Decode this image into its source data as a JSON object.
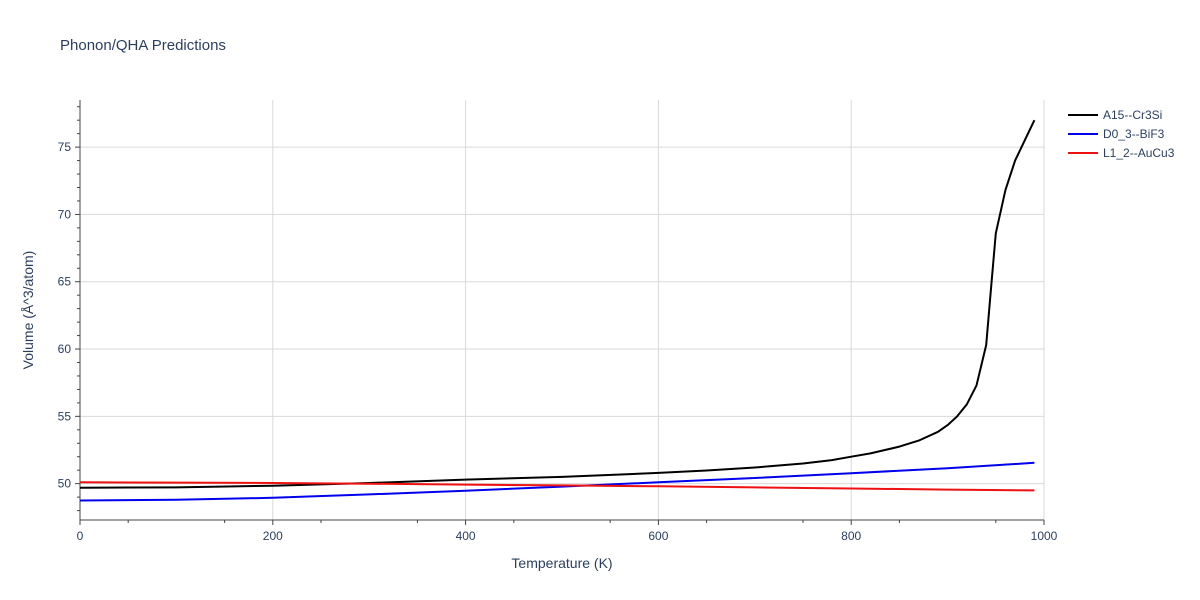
{
  "chart_data": {
    "type": "line",
    "title": "Phonon/QHA Predictions",
    "xlabel": "Temperature (K)",
    "ylabel": "Volume (Å^3/atom)",
    "xlim": [
      0,
      1000
    ],
    "ylim": [
      47.3,
      78.5
    ],
    "xticks": [
      0,
      200,
      400,
      600,
      800,
      1000
    ],
    "xtick_labels": [
      "0",
      "200",
      "400",
      "600",
      "800",
      "1000"
    ],
    "yticks": [
      50,
      55,
      60,
      65,
      70,
      75
    ],
    "ytick_labels": [
      "50",
      "55",
      "60",
      "65",
      "70",
      "75"
    ],
    "grid": true,
    "legend_position": "top-right-outside",
    "series": [
      {
        "name": "A15--Cr3Si",
        "color": "#000000",
        "x": [
          0,
          100,
          200,
          300,
          400,
          500,
          600,
          650,
          700,
          750,
          780,
          800,
          820,
          850,
          870,
          890,
          900,
          910,
          920,
          930,
          940,
          945,
          950,
          960,
          970,
          980,
          990
        ],
        "y": [
          49.7,
          49.72,
          49.85,
          50.05,
          50.3,
          50.5,
          50.8,
          50.98,
          51.2,
          51.5,
          51.75,
          52.0,
          52.25,
          52.75,
          53.2,
          53.85,
          54.35,
          55.0,
          55.9,
          57.3,
          60.3,
          64.5,
          68.6,
          71.8,
          74.0,
          75.5,
          77.0
        ]
      },
      {
        "name": "D0_3--BiF3",
        "color": "#0000ee",
        "x": [
          0,
          100,
          200,
          300,
          400,
          500,
          600,
          700,
          800,
          900,
          990
        ],
        "y": [
          48.75,
          48.8,
          48.95,
          49.2,
          49.48,
          49.78,
          50.1,
          50.42,
          50.78,
          51.15,
          51.55
        ]
      },
      {
        "name": "L1_2--AuCu3",
        "color": "#ee1111",
        "x": [
          0,
          100,
          200,
          300,
          400,
          500,
          600,
          700,
          800,
          900,
          990
        ],
        "y": [
          50.1,
          50.08,
          50.05,
          50.0,
          49.93,
          49.87,
          49.8,
          49.72,
          49.64,
          49.56,
          49.5
        ]
      }
    ]
  }
}
